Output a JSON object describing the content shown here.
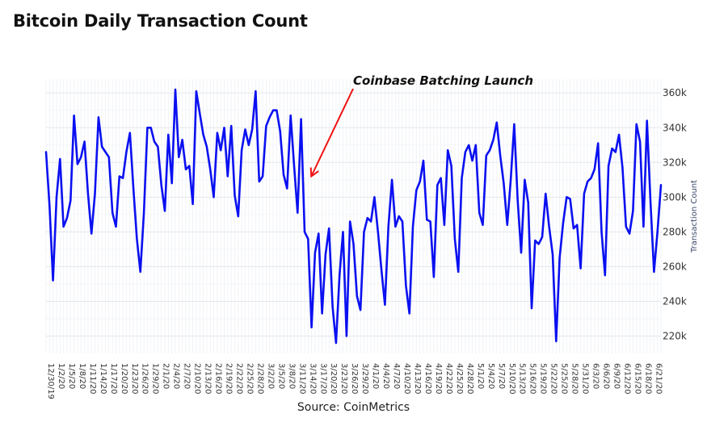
{
  "chart_data": {
    "type": "line",
    "title": "Bitcoin Daily Transaction Count",
    "source": "Source: CoinMetrics",
    "ylabel": "Transaction Count",
    "xlabel": "",
    "ylim": [
      210000,
      368000
    ],
    "y_ticks": [
      220000,
      240000,
      260000,
      280000,
      300000,
      320000,
      340000,
      360000
    ],
    "y_tick_labels": [
      "220k",
      "240k",
      "260k",
      "280k",
      "300k",
      "320k",
      "340k",
      "360k"
    ],
    "x_tick_labels": [
      "12/30/19",
      "1/2/20",
      "1/5/20",
      "1/8/20",
      "1/11/20",
      "1/14/20",
      "1/17/20",
      "1/20/20",
      "1/23/20",
      "1/26/20",
      "1/29/20",
      "2/1/20",
      "2/4/20",
      "2/7/20",
      "2/10/20",
      "2/13/20",
      "2/16/20",
      "2/19/20",
      "2/22/20",
      "2/25/20",
      "2/28/20",
      "3/2/20",
      "3/5/20",
      "3/8/20",
      "3/11/20",
      "3/14/20",
      "3/17/20",
      "3/20/20",
      "3/23/20",
      "3/26/20",
      "3/29/20",
      "4/1/20",
      "4/4/20",
      "4/7/20",
      "4/10/20",
      "4/13/20",
      "4/16/20",
      "4/19/20",
      "4/22/20",
      "4/25/20",
      "4/28/20",
      "5/1/20",
      "5/4/20",
      "5/7/20",
      "5/10/20",
      "5/13/20",
      "5/16/20",
      "5/19/20",
      "5/22/20",
      "5/25/20",
      "5/28/20",
      "5/31/20",
      "6/3/20",
      "6/6/20",
      "6/9/20",
      "6/12/20",
      "6/15/20",
      "6/18/20",
      "6/21/20"
    ],
    "x_tick_step_days": 3,
    "grid": true,
    "line_color": "#0a10f0",
    "annotation": {
      "text": "Coinbase Batching Launch",
      "arrow_color": "#ee1111",
      "target_day": 75,
      "target_value": 312000
    },
    "series": [
      {
        "name": "Transaction Count",
        "start": "12/30/19",
        "values": [
          326000,
          295000,
          252000,
          300000,
          322000,
          283000,
          288000,
          298000,
          347000,
          319000,
          323000,
          332000,
          302000,
          279000,
          302000,
          346000,
          329000,
          326000,
          323000,
          291000,
          283000,
          312000,
          311000,
          326000,
          337000,
          305000,
          276000,
          257000,
          291000,
          340000,
          340000,
          332000,
          329000,
          307000,
          292000,
          336000,
          308000,
          362000,
          323000,
          333000,
          316000,
          318000,
          296000,
          361000,
          348000,
          336000,
          329000,
          316000,
          300000,
          337000,
          327000,
          340000,
          312000,
          341000,
          301000,
          289000,
          327000,
          339000,
          330000,
          339000,
          361000,
          309000,
          312000,
          341000,
          346000,
          350000,
          350000,
          338000,
          313000,
          305000,
          347000,
          318000,
          291000,
          345000,
          280000,
          276000,
          225000,
          268000,
          279000,
          233000,
          267000,
          282000,
          237000,
          216000,
          255000,
          280000,
          220000,
          286000,
          273000,
          243000,
          235000,
          280000,
          288000,
          286000,
          300000,
          280000,
          258000,
          238000,
          283000,
          310000,
          283000,
          289000,
          286000,
          249000,
          233000,
          283000,
          304000,
          309000,
          321000,
          287000,
          286000,
          254000,
          307000,
          311000,
          284000,
          327000,
          318000,
          276000,
          257000,
          311000,
          326000,
          330000,
          321000,
          330000,
          291000,
          284000,
          324000,
          327000,
          333000,
          343000,
          324000,
          308000,
          284000,
          310000,
          342000,
          298000,
          268000,
          310000,
          297000,
          236000,
          275000,
          273000,
          277000,
          302000,
          283000,
          267000,
          217000,
          265000,
          285000,
          300000,
          299000,
          282000,
          284000,
          259000,
          302000,
          309000,
          311000,
          316000,
          331000,
          280000,
          255000,
          318000,
          328000,
          326000,
          336000,
          317000,
          283000,
          279000,
          292000,
          342000,
          332000,
          283000,
          344000,
          298000,
          257000,
          280000,
          307000
        ]
      }
    ]
  }
}
